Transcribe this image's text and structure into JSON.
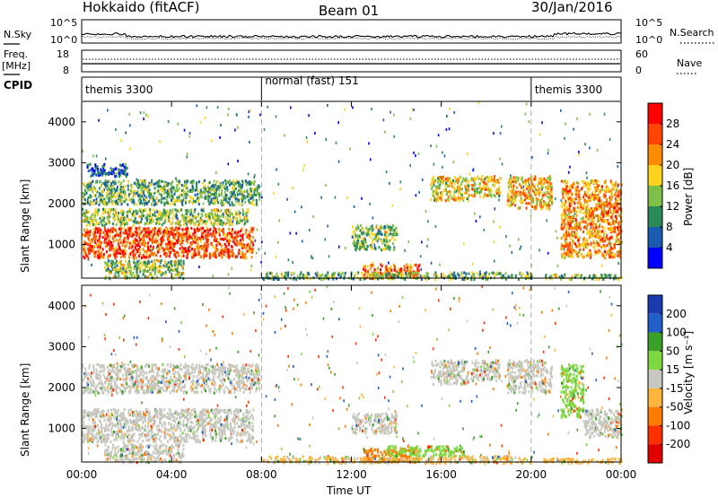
{
  "header": {
    "radar": "Hokkaido (fitACF)",
    "beam": "Beam 01",
    "date": "30/Jan/2016"
  },
  "strip": {
    "nsky_label": "N.Sky",
    "nsearch_label": "N.Search",
    "freq_label_1": "Freq.",
    "freq_label_2": "[MHz]",
    "nave_label": "Nave",
    "cpid_label": "CPID",
    "noise_left_ticks": [
      "10^5",
      "10^0"
    ],
    "noise_right_ticks": [
      "10^5",
      "10^0"
    ],
    "freq_ticks": [
      "18",
      "8"
    ],
    "nave_ticks": [
      "60",
      "0"
    ]
  },
  "cpid": [
    {
      "name": "themis 3300",
      "start_h": 0,
      "end_h": 8
    },
    {
      "name": "normal (fast) 151",
      "start_h": 8,
      "end_h": 20
    },
    {
      "name": "themis 3300",
      "start_h": 20,
      "end_h": 24
    }
  ],
  "axes": {
    "time_ticks": [
      "00:00",
      "04:00",
      "08:00",
      "12:00",
      "16:00",
      "20:00",
      "00:00"
    ],
    "xlabel": "Time UT",
    "range_ticks": [
      "1000",
      "2000",
      "3000",
      "4000"
    ],
    "ylabel": "Slant Range [km]"
  },
  "power_scale": {
    "label": "Power [dB]",
    "ticks": [
      "4",
      "8",
      "12",
      "16",
      "20",
      "24",
      "28"
    ],
    "colors": [
      "#0000ff",
      "#1a5cb0",
      "#2a8a5a",
      "#7fc048",
      "#ffd21e",
      "#ff8c00",
      "#ff4500",
      "#ff0000"
    ]
  },
  "velocity_scale": {
    "label": "Velocity [m s⁻¹]",
    "ticks": [
      "200",
      "100",
      "50",
      "15",
      "-15",
      "-50",
      "-100",
      "-200"
    ],
    "colors": [
      "#1a3ab0",
      "#2060c8",
      "#3aa028",
      "#7ed840",
      "#c8c8c0",
      "#ffb43c",
      "#ff7a00",
      "#ff3000",
      "#e00000"
    ]
  },
  "chart_data": [
    {
      "type": "heatmap",
      "title": "",
      "xlabel": "",
      "ylabel": "Slant Range [km]",
      "xlim": [
        0,
        24
      ],
      "ylim": [
        180,
        4500
      ],
      "colorbar_label": "Power [dB]",
      "regions": [
        {
          "t0": 0.0,
          "t1": 7.6,
          "r0": 700,
          "r1": 1450,
          "value": 26
        },
        {
          "t0": 0.0,
          "t1": 7.4,
          "r0": 1500,
          "r1": 1900,
          "value": 14
        },
        {
          "t0": 0.0,
          "t1": 7.9,
          "r0": 2000,
          "r1": 2600,
          "value": 12
        },
        {
          "t0": 0.2,
          "t1": 2.0,
          "r0": 2700,
          "r1": 3000,
          "value": 6
        },
        {
          "t0": 1.0,
          "t1": 4.5,
          "r0": 200,
          "r1": 650,
          "value": 14
        },
        {
          "t0": 12.0,
          "t1": 14.0,
          "r0": 900,
          "r1": 1500,
          "value": 14
        },
        {
          "t0": 12.5,
          "t1": 15.0,
          "r0": 200,
          "r1": 550,
          "value": 24
        },
        {
          "t0": 8.0,
          "t1": 20.0,
          "r0": 180,
          "r1": 350,
          "value": 12
        },
        {
          "t0": 15.5,
          "t1": 17.2,
          "r0": 2100,
          "r1": 2700,
          "value": 18
        },
        {
          "t0": 17.3,
          "t1": 18.6,
          "r0": 2200,
          "r1": 2700,
          "value": 18
        },
        {
          "t0": 18.9,
          "t1": 20.9,
          "r0": 1900,
          "r1": 2700,
          "value": 20
        },
        {
          "t0": 21.3,
          "t1": 24.0,
          "r0": 700,
          "r1": 2600,
          "value": 22
        },
        {
          "t0": 20.5,
          "t1": 24.0,
          "r0": 180,
          "r1": 300,
          "value": 14
        }
      ]
    },
    {
      "type": "heatmap",
      "title": "",
      "xlabel": "Time UT",
      "ylabel": "Slant Range [km]",
      "xlim": [
        0,
        24
      ],
      "ylim": [
        180,
        4500
      ],
      "colorbar_label": "Velocity [m s⁻¹]",
      "regions": [
        {
          "t0": 0.0,
          "t1": 7.6,
          "r0": 700,
          "r1": 1500,
          "value": 0
        },
        {
          "t0": 0.0,
          "t1": 7.9,
          "r0": 1900,
          "r1": 2600,
          "value": 0
        },
        {
          "t0": 1.0,
          "t1": 4.5,
          "r0": 200,
          "r1": 650,
          "value": 0
        },
        {
          "t0": 12.0,
          "t1": 14.0,
          "r0": 900,
          "r1": 1400,
          "value": 0
        },
        {
          "t0": 12.5,
          "t1": 15.0,
          "r0": 200,
          "r1": 550,
          "value": -60
        },
        {
          "t0": 8.0,
          "t1": 20.0,
          "r0": 180,
          "r1": 350,
          "value": -20
        },
        {
          "t0": 13.5,
          "t1": 17.0,
          "r0": 350,
          "r1": 600,
          "value": 30
        },
        {
          "t0": 15.5,
          "t1": 17.2,
          "r0": 2100,
          "r1": 2700,
          "value": 0
        },
        {
          "t0": 17.3,
          "t1": 18.6,
          "r0": 2200,
          "r1": 2700,
          "value": 0
        },
        {
          "t0": 18.9,
          "t1": 20.9,
          "r0": 1900,
          "r1": 2700,
          "value": 0
        },
        {
          "t0": 21.3,
          "t1": 22.3,
          "r0": 1300,
          "r1": 2600,
          "value": 30
        },
        {
          "t0": 22.3,
          "t1": 24.0,
          "r0": 800,
          "r1": 1500,
          "value": 0
        },
        {
          "t0": 20.5,
          "t1": 24.0,
          "r0": 180,
          "r1": 300,
          "value": -30
        }
      ]
    }
  ]
}
